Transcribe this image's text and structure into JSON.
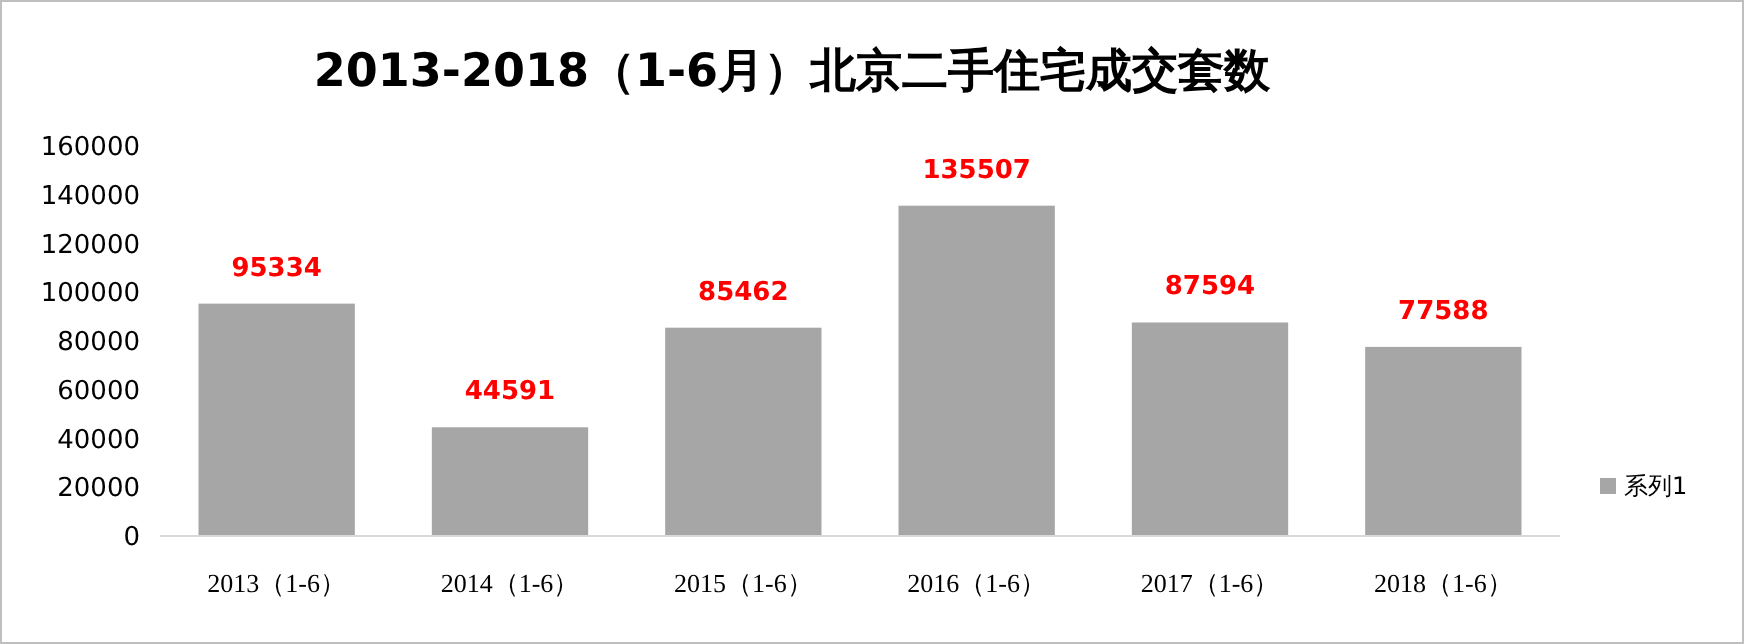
{
  "chart_data": {
    "type": "bar",
    "title": "2013-2018（1-6月）北京二手住宅成交套数",
    "categories": [
      "2013（1-6）",
      "2014（1-6）",
      "2015（1-6）",
      "2016（1-6）",
      "2017（1-6）",
      "2018（1-6）"
    ],
    "series": [
      {
        "name": "系列1",
        "color": "#a6a6a6",
        "values": [
          95334,
          44591,
          85462,
          135507,
          87594,
          77588
        ]
      }
    ],
    "ylim": [
      0,
      160000
    ],
    "yticks": [
      0,
      20000,
      40000,
      60000,
      80000,
      100000,
      120000,
      140000,
      160000
    ],
    "data_labels": true,
    "legend": "right",
    "grid": false
  }
}
